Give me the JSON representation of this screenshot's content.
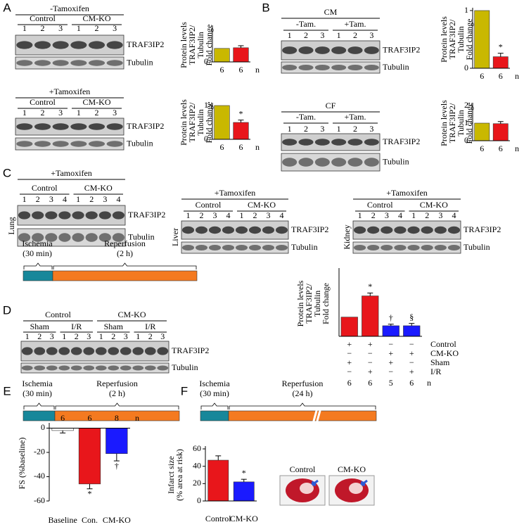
{
  "panel_labels": [
    "A",
    "B",
    "C",
    "D",
    "E",
    "F"
  ],
  "blots": [
    {
      "treatment": "-Tamoxifen",
      "groups": [
        "Control",
        "CM-KO"
      ],
      "lanes": [
        "1",
        "2",
        "3",
        "1",
        "2",
        "3"
      ],
      "bands": [
        "TRAF3IP2",
        "Tubulin"
      ]
    },
    {
      "treatment": "+Tamoxifen",
      "groups": [
        "Control",
        "CM-KO"
      ],
      "lanes": [
        "1",
        "2",
        "3",
        "1",
        "2",
        "3"
      ],
      "bands": [
        "TRAF3IP2",
        "Tubulin"
      ]
    },
    {
      "treatment": "CM",
      "groups": [
        "-Tam.",
        "+Tam."
      ],
      "lanes": [
        "1",
        "2",
        "3",
        "1",
        "2",
        "3"
      ],
      "bands": [
        "TRAF3IP2",
        "Tubulin"
      ]
    },
    {
      "treatment": "CF",
      "groups": [
        "-Tam.",
        "+Tam."
      ],
      "lanes": [
        "1",
        "2",
        "3",
        "1",
        "2",
        "3"
      ],
      "bands": [
        "TRAF3IP2",
        "Tubulin"
      ]
    },
    {
      "tissue": "Lung",
      "treatment": "+Tamoxifen",
      "groups": [
        "Control",
        "CM-KO"
      ],
      "lanes": [
        "1",
        "2",
        "3",
        "4",
        "1",
        "2",
        "3",
        "4"
      ],
      "bands": [
        "TRAF3IP2",
        "Tubulin"
      ]
    },
    {
      "tissue": "Liver",
      "treatment": "+Tamoxifen",
      "groups": [
        "Control",
        "CM-KO"
      ],
      "lanes": [
        "1",
        "2",
        "3",
        "4",
        "1",
        "2",
        "3",
        "4"
      ],
      "bands": [
        "TRAF3IP2",
        "Tubulin"
      ]
    },
    {
      "tissue": "Kidney",
      "treatment": "+Tamoxifen",
      "groups": [
        "Control",
        "CM-KO"
      ],
      "lanes": [
        "1",
        "2",
        "3",
        "4",
        "1",
        "2",
        "3",
        "4"
      ],
      "bands": [
        "TRAF3IP2",
        "Tubulin"
      ]
    },
    {
      "groups": [
        "Control",
        "CM-KO"
      ],
      "subgroups": [
        "Sham",
        "I/R",
        "Sham",
        "I/R"
      ],
      "lanes": [
        "1",
        "2",
        "3",
        "1",
        "2",
        "3",
        "1",
        "2",
        "3",
        "1",
        "2",
        "3"
      ],
      "bands": [
        "TRAF3IP2",
        "Tubulin"
      ]
    }
  ],
  "timelines": [
    {
      "segments": [
        {
          "lines": [
            "Ischemia",
            "(30 min)"
          ],
          "color": "#17879a"
        },
        {
          "lines": [
            "Reperfusion",
            "(2 h)"
          ],
          "color": "#f47a20"
        }
      ]
    },
    {
      "segments": [
        {
          "lines": [
            "Ischemia",
            "(30 min)"
          ],
          "color": "#17879a"
        },
        {
          "lines": [
            "Reperfusion",
            "(2 h)"
          ],
          "color": "#f47a20"
        }
      ]
    },
    {
      "segments": [
        {
          "lines": [
            "Ischemia",
            "(30 min)"
          ],
          "color": "#17879a"
        },
        {
          "lines": [
            "Reperfusion",
            "(24 h)"
          ],
          "color": "#f47a20"
        }
      ]
    }
  ],
  "heart_images": [
    "Control",
    "CM-KO"
  ],
  "chart_data": [
    {
      "type": "bar",
      "ylabel": [
        "Protein levels",
        "TRAF3IP2/",
        "Tubulin",
        "Fold change"
      ],
      "categories": [
        "6",
        "6"
      ],
      "x_label": "n",
      "values": [
        1,
        1.05
      ],
      "errors": [
        0,
        0.15
      ],
      "colors": [
        "#c9b800",
        "#e8161b"
      ],
      "annotations": [
        null,
        null
      ],
      "ylim": [
        0,
        2.5
      ],
      "yticks": [
        0
      ]
    },
    {
      "type": "bar",
      "ylabel": [
        "Protein levels",
        "TRAF3IP2/",
        "Tubulin",
        "Fold change"
      ],
      "categories": [
        "6",
        "6"
      ],
      "x_label": "n",
      "values": [
        1,
        0.5
      ],
      "errors": [
        0,
        0.07
      ],
      "colors": [
        "#c9b800",
        "#e8161b"
      ],
      "annotations": [
        null,
        "*"
      ],
      "ylim": [
        0,
        1
      ],
      "yticks": [
        0,
        1
      ]
    },
    {
      "type": "bar",
      "ylabel": [
        "Protein levels",
        "TRAF3IP2/",
        "Tubulin",
        "Fold change"
      ],
      "categories": [
        "6",
        "6"
      ],
      "x_label": "n",
      "values": [
        1,
        0.2
      ],
      "errors": [
        0,
        0.06
      ],
      "colors": [
        "#c9b800",
        "#e8161b"
      ],
      "annotations": [
        null,
        "*"
      ],
      "ylim": [
        0,
        1
      ],
      "yticks": [
        0,
        1
      ]
    },
    {
      "type": "bar",
      "ylabel": [
        "Protein levels",
        "TRAF3IP2/",
        "Tubulin",
        "Fold change"
      ],
      "categories": [
        "6",
        "6"
      ],
      "x_label": "n",
      "values": [
        1,
        0.97
      ],
      "errors": [
        0,
        0.12
      ],
      "colors": [
        "#c9b800",
        "#e8161b"
      ],
      "annotations": [
        null,
        null
      ],
      "ylim": [
        0,
        2
      ],
      "yticks": [
        0,
        1,
        2
      ]
    },
    {
      "type": "bar",
      "ylabel": [
        "Protein levels",
        "TRAF3IP2/",
        "Tubulin",
        "Fold change"
      ],
      "categories": [
        "6",
        "6",
        "5",
        "6"
      ],
      "x_label": "n",
      "values": [
        1,
        2.1,
        0.55,
        0.55
      ],
      "errors": [
        0,
        0.15,
        0.08,
        0.12
      ],
      "colors": [
        "#e8161b",
        "#e8161b",
        "#1a1aff",
        "#1a1aff"
      ],
      "annotations": [
        null,
        "*",
        "†",
        "§"
      ],
      "ylim": [
        0,
        3.4
      ],
      "yticks": [],
      "table": [
        {
          "label": "Control",
          "marks": [
            "+",
            "+",
            "−",
            "−"
          ]
        },
        {
          "label": "CM-KO",
          "marks": [
            "−",
            "−",
            "+",
            "+"
          ]
        },
        {
          "label": "Sham",
          "marks": [
            "+",
            "−",
            "+",
            "−"
          ]
        },
        {
          "label": "I/R",
          "marks": [
            "−",
            "+",
            "−",
            "+"
          ]
        }
      ]
    },
    {
      "type": "bar",
      "ylabel": [
        "FS (%baseline)"
      ],
      "categories": [
        "Baseline",
        "Con.",
        "CM-KO"
      ],
      "n_labels": [
        "6",
        "6",
        "8"
      ],
      "x_label": "n",
      "values": [
        -2,
        -46,
        -21
      ],
      "errors": [
        2,
        4,
        6
      ],
      "colors": [
        "#ffffff",
        "#e8161b",
        "#1a1aff"
      ],
      "annotations": [
        null,
        "*",
        "†"
      ],
      "ylim": [
        -60,
        2
      ],
      "yticks": [
        0,
        -20,
        -40,
        -60
      ]
    },
    {
      "type": "bar",
      "ylabel": [
        "Infarct size",
        "(% area at risk)"
      ],
      "categories": [
        "Control",
        "CM-KO"
      ],
      "values": [
        47,
        22
      ],
      "errors": [
        5,
        3
      ],
      "colors": [
        "#e8161b",
        "#1a1aff"
      ],
      "annotations": [
        null,
        "*"
      ],
      "ylim": [
        0,
        60
      ],
      "yticks": [
        0,
        20,
        40,
        60
      ]
    }
  ]
}
